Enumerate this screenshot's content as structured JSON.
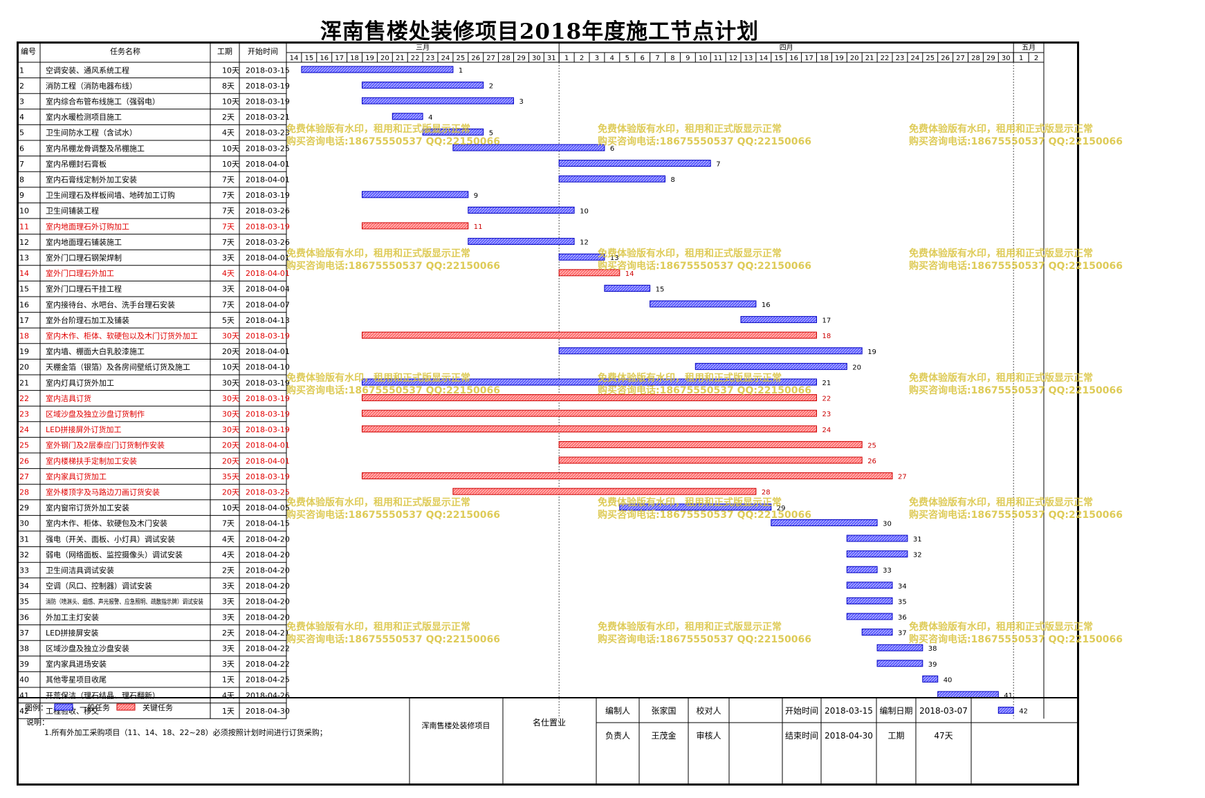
{
  "title": "浑南售楼处装修项目2018年度施工节点计划",
  "headers": {
    "id": "编号",
    "name": "任务名称",
    "duration": "工期",
    "start": "开始时间"
  },
  "months": [
    {
      "label": "三月",
      "days": [
        14,
        15,
        16,
        17,
        18,
        19,
        20,
        21,
        22,
        23,
        24,
        25,
        26,
        27,
        28,
        29,
        30,
        31
      ]
    },
    {
      "label": "四月",
      "days": [
        1,
        2,
        3,
        4,
        5,
        6,
        7,
        8,
        9,
        10,
        11,
        12,
        13,
        14,
        15,
        16,
        17,
        18,
        19,
        20,
        21,
        22,
        23,
        24,
        25,
        26,
        27,
        28,
        29,
        30
      ]
    },
    {
      "label": "五月",
      "days": [
        1,
        2
      ]
    }
  ],
  "colors": {
    "general": "#5a5aff",
    "critical": "#ff6b6b",
    "critical_text": "#e00000",
    "watermark": "#d9c33c"
  },
  "chart_data": {
    "type": "gantt",
    "timeline_start": "2018-03-14",
    "timeline_end": "2018-05-02",
    "tasks": [
      {
        "id": "1",
        "name": "空调安装、通风系统工程",
        "duration": "10天",
        "start": "2018-03-15",
        "days": 10,
        "critical": false
      },
      {
        "id": "2",
        "name": "消防工程（消防电器布线）",
        "duration": "8天",
        "start": "2018-03-19",
        "days": 8,
        "critical": false
      },
      {
        "id": "3",
        "name": "室内综合布管布线施工（强弱电）",
        "duration": "10天",
        "start": "2018-03-19",
        "days": 10,
        "critical": false
      },
      {
        "id": "4",
        "name": "室内水暖检测项目施工",
        "duration": "2天",
        "start": "2018-03-21",
        "days": 2,
        "critical": false
      },
      {
        "id": "5",
        "name": "卫生间防水工程（含试水）",
        "duration": "4天",
        "start": "2018-03-23",
        "days": 4,
        "critical": false
      },
      {
        "id": "6",
        "name": "室内吊棚龙骨调整及吊棚施工",
        "duration": "10天",
        "start": "2018-03-25",
        "days": 10,
        "critical": false
      },
      {
        "id": "7",
        "name": "室内吊棚封石膏板",
        "duration": "10天",
        "start": "2018-04-01",
        "days": 10,
        "critical": false
      },
      {
        "id": "8",
        "name": "室内石膏线定制外加工安装",
        "duration": "7天",
        "start": "2018-04-01",
        "days": 7,
        "critical": false
      },
      {
        "id": "9",
        "name": "卫生间理石及样板间墙、地砖加工订购",
        "duration": "7天",
        "start": "2018-03-19",
        "days": 7,
        "critical": false
      },
      {
        "id": "10",
        "name": "卫生间铺装工程",
        "duration": "7天",
        "start": "2018-03-26",
        "days": 7,
        "critical": false
      },
      {
        "id": "11",
        "name": "室内地面理石外订购加工",
        "duration": "7天",
        "start": "2018-03-19",
        "days": 7,
        "critical": true
      },
      {
        "id": "12",
        "name": "室内地面理石铺装施工",
        "duration": "7天",
        "start": "2018-03-26",
        "days": 7,
        "critical": false
      },
      {
        "id": "13",
        "name": "室外门口理石钢架焊制",
        "duration": "3天",
        "start": "2018-04-01",
        "days": 3,
        "critical": false
      },
      {
        "id": "14",
        "name": "室外门口理石外加工",
        "duration": "4天",
        "start": "2018-04-01",
        "days": 4,
        "critical": true
      },
      {
        "id": "15",
        "name": "室外门口理石干挂工程",
        "duration": "3天",
        "start": "2018-04-04",
        "days": 3,
        "critical": false
      },
      {
        "id": "16",
        "name": "室内接待台、水吧台、洗手台理石安装",
        "duration": "7天",
        "start": "2018-04-07",
        "days": 7,
        "critical": false
      },
      {
        "id": "17",
        "name": "室外台阶理石加工及铺装",
        "duration": "5天",
        "start": "2018-04-13",
        "days": 5,
        "critical": false
      },
      {
        "id": "18",
        "name": "室内木作、柜体、软硬包以及木门订货外加工",
        "duration": "30天",
        "start": "2018-03-19",
        "days": 30,
        "critical": true
      },
      {
        "id": "19",
        "name": "室内墙、棚面大白乳胶漆施工",
        "duration": "20天",
        "start": "2018-04-01",
        "days": 20,
        "critical": false
      },
      {
        "id": "20",
        "name": "天棚金箔（银箔）及各房间壁纸订货及施工",
        "duration": "10天",
        "start": "2018-04-10",
        "days": 10,
        "critical": false
      },
      {
        "id": "21",
        "name": "室内灯具订货外加工",
        "duration": "30天",
        "start": "2018-03-19",
        "days": 30,
        "critical": false
      },
      {
        "id": "22",
        "name": "室内洁具订货",
        "duration": "30天",
        "start": "2018-03-19",
        "days": 30,
        "critical": true
      },
      {
        "id": "23",
        "name": "区域沙盘及独立沙盘订货制作",
        "duration": "30天",
        "start": "2018-03-19",
        "days": 30,
        "critical": true
      },
      {
        "id": "24",
        "name": "LED拼接屏外订货加工",
        "duration": "30天",
        "start": "2018-03-19",
        "days": 30,
        "critical": true
      },
      {
        "id": "25",
        "name": "室外钢门及2层泰应门订货制作安装",
        "duration": "20天",
        "start": "2018-04-01",
        "days": 20,
        "critical": true
      },
      {
        "id": "26",
        "name": "室内楼梯扶手定制加工安装",
        "duration": "20天",
        "start": "2018-04-01",
        "days": 20,
        "critical": true
      },
      {
        "id": "27",
        "name": "室内家具订货加工",
        "duration": "35天",
        "start": "2018-03-19",
        "days": 35,
        "critical": true
      },
      {
        "id": "28",
        "name": "室外楼顶字及马路边刀画订货安装",
        "duration": "20天",
        "start": "2018-03-25",
        "days": 20,
        "critical": true
      },
      {
        "id": "29",
        "name": "室内窗帘订货外加工安装",
        "duration": "10天",
        "start": "2018-04-05",
        "days": 10,
        "critical": false
      },
      {
        "id": "30",
        "name": "室内木作、柜体、软硬包及木门安装",
        "duration": "7天",
        "start": "2018-04-15",
        "days": 7,
        "critical": false
      },
      {
        "id": "31",
        "name": "强电（开关、面板、小灯具）调试安装",
        "duration": "4天",
        "start": "2018-04-20",
        "days": 4,
        "critical": false
      },
      {
        "id": "32",
        "name": "弱电（网络面板、监控摄像头）调试安装",
        "duration": "4天",
        "start": "2018-04-20",
        "days": 4,
        "critical": false
      },
      {
        "id": "33",
        "name": "卫生间洁具调试安装",
        "duration": "2天",
        "start": "2018-04-20",
        "days": 2,
        "critical": false
      },
      {
        "id": "34",
        "name": "空调（风口、控制器）调试安装",
        "duration": "3天",
        "start": "2018-04-20",
        "days": 3,
        "critical": false
      },
      {
        "id": "35",
        "name": "消防（喷淋头、烟感、声光报警、应急照明、疏散指示牌）调试安装",
        "duration": "3天",
        "start": "2018-04-20",
        "days": 3,
        "critical": false
      },
      {
        "id": "36",
        "name": "外加工主灯安装",
        "duration": "3天",
        "start": "2018-04-20",
        "days": 3,
        "critical": false
      },
      {
        "id": "37",
        "name": "LED拼接屏安装",
        "duration": "2天",
        "start": "2018-04-21",
        "days": 2,
        "critical": false
      },
      {
        "id": "38",
        "name": "区域沙盘及独立沙盘安装",
        "duration": "3天",
        "start": "2018-04-22",
        "days": 3,
        "critical": false
      },
      {
        "id": "39",
        "name": "室内家具进场安装",
        "duration": "3天",
        "start": "2018-04-22",
        "days": 3,
        "critical": false
      },
      {
        "id": "40",
        "name": "其他零星项目收尾",
        "duration": "1天",
        "start": "2018-04-25",
        "days": 1,
        "critical": false
      },
      {
        "id": "41",
        "name": "开荒保洁（理石结晶、理石翻新）",
        "duration": "4天",
        "start": "2018-04-26",
        "days": 4,
        "critical": false
      },
      {
        "id": "42",
        "name": "工程验收、移交",
        "duration": "1天",
        "start": "2018-04-30",
        "days": 1,
        "critical": false
      }
    ]
  },
  "legend": {
    "label": "图例：",
    "general": "一般任务",
    "critical": "关键任务"
  },
  "note": {
    "label": "说明：",
    "text": "1.所有外加工采购项目（11、14、18、22~28）必须按照计划时间进行订货采购；"
  },
  "footer": {
    "project": "浑南售楼处装修项目",
    "company": "名仕置业",
    "compiler_label": "编制人",
    "compiler": "张家国",
    "proofreader_label": "校对人",
    "proofreader": "",
    "responsible_label": "负责人",
    "responsible": "王茂金",
    "reviewer_label": "审核人",
    "reviewer": "",
    "start_label": "开始时间",
    "start": "2018-03-15",
    "end_label": "结束时间",
    "end": "2018-04-30",
    "date_label": "编制日期",
    "date": "2018-03-07",
    "duration_label": "工期",
    "duration": "47天"
  },
  "watermark": {
    "line1": "免费体验版有水印，租用和正式版显示正常",
    "line2": "购买咨询电话:18675550537 QQ:22150066"
  }
}
